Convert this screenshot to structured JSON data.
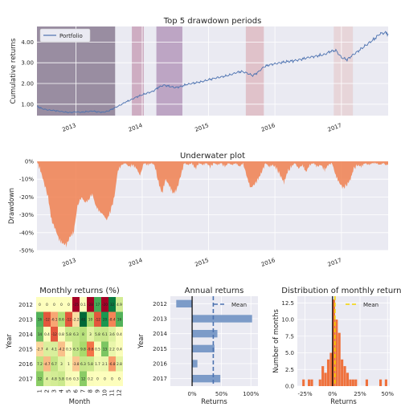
{
  "chart_data": [
    {
      "type": "line",
      "title": "Top 5 drawdown periods",
      "ylabel": "Cumulative returns",
      "xlim": [
        "2012-06-01",
        "2017-09-15"
      ],
      "ylim": [
        0.45,
        4.75
      ],
      "yticks": [
        1.0,
        2.0,
        3.0,
        4.0
      ],
      "ytick_labels": [
        "1.00",
        "2.00",
        "3.00",
        "4.00"
      ],
      "xtick_labels": [
        "2013",
        "2014",
        "2015",
        "2016",
        "2017"
      ],
      "legend": "upper-left",
      "series": [
        {
          "name": "Portfolio",
          "color": "#4c72b0",
          "points": [
            [
              "2012-06-01",
              0.9
            ],
            [
              "2012-07-01",
              0.78
            ],
            [
              "2012-08-01",
              0.72
            ],
            [
              "2012-09-01",
              0.7
            ],
            [
              "2012-10-01",
              0.66
            ],
            [
              "2012-11-01",
              0.62
            ],
            [
              "2012-12-01",
              0.6
            ],
            [
              "2013-01-01",
              0.63
            ],
            [
              "2013-02-01",
              0.61
            ],
            [
              "2013-03-01",
              0.64
            ],
            [
              "2013-04-01",
              0.67
            ],
            [
              "2013-05-01",
              0.63
            ],
            [
              "2013-06-01",
              0.61
            ],
            [
              "2013-07-01",
              0.68
            ],
            [
              "2013-08-01",
              0.82
            ],
            [
              "2013-09-01",
              0.95
            ],
            [
              "2013-10-01",
              1.1
            ],
            [
              "2013-11-01",
              1.22
            ],
            [
              "2013-12-01",
              1.35
            ],
            [
              "2014-01-01",
              1.45
            ],
            [
              "2014-02-01",
              1.55
            ],
            [
              "2014-03-01",
              1.62
            ],
            [
              "2014-04-01",
              1.82
            ],
            [
              "2014-05-01",
              1.92
            ],
            [
              "2014-06-01",
              1.86
            ],
            [
              "2014-07-01",
              1.8
            ],
            [
              "2014-08-01",
              1.85
            ],
            [
              "2014-09-01",
              1.95
            ],
            [
              "2014-10-01",
              2.0
            ],
            [
              "2014-11-01",
              2.05
            ],
            [
              "2014-12-01",
              2.1
            ],
            [
              "2015-01-01",
              2.18
            ],
            [
              "2015-02-01",
              2.25
            ],
            [
              "2015-03-01",
              2.3
            ],
            [
              "2015-04-01",
              2.35
            ],
            [
              "2015-05-01",
              2.42
            ],
            [
              "2015-06-01",
              2.52
            ],
            [
              "2015-07-01",
              2.58
            ],
            [
              "2015-08-01",
              2.5
            ],
            [
              "2015-09-01",
              2.38
            ],
            [
              "2015-10-01",
              2.55
            ],
            [
              "2015-11-01",
              2.8
            ],
            [
              "2015-12-01",
              2.9
            ],
            [
              "2016-01-01",
              2.95
            ],
            [
              "2016-02-01",
              3.0
            ],
            [
              "2016-03-01",
              3.05
            ],
            [
              "2016-04-01",
              3.08
            ],
            [
              "2016-05-01",
              3.12
            ],
            [
              "2016-06-01",
              3.18
            ],
            [
              "2016-07-01",
              3.25
            ],
            [
              "2016-08-01",
              3.3
            ],
            [
              "2016-09-01",
              3.35
            ],
            [
              "2016-10-01",
              3.4
            ],
            [
              "2016-11-01",
              3.55
            ],
            [
              "2016-12-01",
              3.6
            ],
            [
              "2017-01-01",
              3.25
            ],
            [
              "2017-02-01",
              3.15
            ],
            [
              "2017-03-01",
              3.35
            ],
            [
              "2017-04-01",
              3.55
            ],
            [
              "2017-05-01",
              3.75
            ],
            [
              "2017-06-01",
              3.95
            ],
            [
              "2017-07-01",
              4.15
            ],
            [
              "2017-08-01",
              4.4
            ],
            [
              "2017-09-01",
              4.45
            ],
            [
              "2017-09-15",
              4.4
            ]
          ]
        }
      ],
      "drawdown_periods": [
        {
          "start": "2012-06-01",
          "end": "2013-08-05",
          "color": "#48304f",
          "alpha": 0.5
        },
        {
          "start": "2013-11-05",
          "end": "2014-01-10",
          "color": "#9a3c6b",
          "alpha": 0.35
        },
        {
          "start": "2014-03-20",
          "end": "2014-08-10",
          "color": "#7a3f80",
          "alpha": 0.4
        },
        {
          "start": "2015-07-25",
          "end": "2015-11-01",
          "color": "#c54a55",
          "alpha": 0.25
        },
        {
          "start": "2016-11-20",
          "end": "2017-03-05",
          "color": "#e07a6c",
          "alpha": 0.18
        }
      ]
    },
    {
      "type": "area",
      "title": "Underwater plot",
      "ylabel": "Drawdown",
      "xlim": [
        "2012-06-01",
        "2017-09-15"
      ],
      "ylim": [
        -50,
        0
      ],
      "yticks": [
        0,
        -10,
        -20,
        -30,
        -40,
        -50
      ],
      "ytick_labels": [
        "0%",
        "-10%",
        "-20%",
        "-30%",
        "-40%",
        "-50%"
      ],
      "xtick_labels": [
        "2013",
        "2014",
        "2015",
        "2016",
        "2017"
      ],
      "color": "#f08050",
      "series": [
        {
          "points": [
            [
              "2012-06-01",
              0
            ],
            [
              "2012-06-20",
              -5
            ],
            [
              "2012-07-10",
              -12
            ],
            [
              "2012-08-01",
              -20
            ],
            [
              "2012-08-20",
              -33
            ],
            [
              "2012-09-10",
              -38
            ],
            [
              "2012-10-01",
              -44
            ],
            [
              "2012-10-20",
              -46
            ],
            [
              "2012-11-10",
              -47
            ],
            [
              "2012-12-01",
              -42
            ],
            [
              "2012-12-20",
              -40
            ],
            [
              "2013-01-10",
              -25
            ],
            [
              "2013-02-01",
              -20
            ],
            [
              "2013-02-20",
              -23
            ],
            [
              "2013-03-10",
              -22
            ],
            [
              "2013-04-01",
              -18
            ],
            [
              "2013-04-20",
              -25
            ],
            [
              "2013-05-10",
              -28
            ],
            [
              "2013-06-01",
              -30
            ],
            [
              "2013-06-20",
              -33
            ],
            [
              "2013-07-10",
              -28
            ],
            [
              "2013-08-01",
              -20
            ],
            [
              "2013-08-20",
              -5
            ],
            [
              "2013-09-10",
              -2
            ],
            [
              "2013-10-01",
              -1
            ],
            [
              "2013-10-20",
              -3
            ],
            [
              "2013-11-10",
              -2
            ],
            [
              "2013-12-01",
              -4
            ],
            [
              "2013-12-20",
              -8
            ],
            [
              "2014-01-10",
              -1
            ],
            [
              "2014-02-01",
              -2
            ],
            [
              "2014-02-20",
              -1
            ],
            [
              "2014-03-10",
              -2
            ],
            [
              "2014-04-01",
              -12
            ],
            [
              "2014-04-20",
              -18
            ],
            [
              "2014-05-10",
              -10
            ],
            [
              "2014-06-01",
              -14
            ],
            [
              "2014-06-20",
              -18
            ],
            [
              "2014-07-10",
              -16
            ],
            [
              "2014-08-01",
              -8
            ],
            [
              "2014-08-20",
              -1
            ],
            [
              "2014-09-10",
              -2
            ],
            [
              "2014-10-01",
              -1
            ],
            [
              "2014-10-20",
              -4
            ],
            [
              "2014-11-10",
              -1
            ],
            [
              "2014-12-01",
              -2
            ],
            [
              "2014-12-20",
              -1
            ],
            [
              "2015-01-10",
              -3
            ],
            [
              "2015-02-01",
              -1
            ],
            [
              "2015-02-20",
              -2
            ],
            [
              "2015-03-10",
              -1
            ],
            [
              "2015-04-01",
              -3
            ],
            [
              "2015-04-20",
              -1
            ],
            [
              "2015-05-10",
              -2
            ],
            [
              "2015-06-01",
              -1
            ],
            [
              "2015-06-20",
              -3
            ],
            [
              "2015-07-10",
              -1
            ],
            [
              "2015-08-01",
              -9
            ],
            [
              "2015-08-20",
              -15
            ],
            [
              "2015-09-10",
              -13
            ],
            [
              "2015-10-01",
              -10
            ],
            [
              "2015-10-20",
              -6
            ],
            [
              "2015-11-10",
              -1
            ],
            [
              "2015-12-01",
              -3
            ],
            [
              "2015-12-20",
              -2
            ],
            [
              "2016-01-10",
              -4
            ],
            [
              "2016-02-01",
              -8
            ],
            [
              "2016-02-20",
              -12
            ],
            [
              "2016-03-10",
              -6
            ],
            [
              "2016-04-01",
              -3
            ],
            [
              "2016-04-20",
              -1
            ],
            [
              "2016-05-10",
              -4
            ],
            [
              "2016-06-01",
              -2
            ],
            [
              "2016-06-20",
              -6
            ],
            [
              "2016-07-10",
              -2
            ],
            [
              "2016-08-01",
              -1
            ],
            [
              "2016-08-20",
              -3
            ],
            [
              "2016-09-10",
              -2
            ],
            [
              "2016-10-01",
              -5
            ],
            [
              "2016-10-20",
              -2
            ],
            [
              "2016-11-10",
              -1
            ],
            [
              "2016-12-01",
              -8
            ],
            [
              "2016-12-20",
              -12
            ],
            [
              "2017-01-10",
              -15
            ],
            [
              "2017-02-01",
              -13
            ],
            [
              "2017-02-20",
              -10
            ],
            [
              "2017-03-10",
              -4
            ],
            [
              "2017-04-01",
              -2
            ],
            [
              "2017-04-20",
              -3
            ],
            [
              "2017-05-10",
              -1
            ],
            [
              "2017-06-01",
              -2
            ],
            [
              "2017-06-20",
              -1
            ],
            [
              "2017-07-10",
              -1
            ],
            [
              "2017-08-01",
              -2
            ],
            [
              "2017-08-20",
              -1
            ],
            [
              "2017-09-15",
              -2
            ]
          ]
        }
      ]
    },
    {
      "type": "heatmap",
      "title": "Monthly returns (%)",
      "xlabel": "Month",
      "ylabel": "Year",
      "years": [
        "2012",
        "2013",
        "2014",
        "2015",
        "2016",
        "2017"
      ],
      "months": [
        "1",
        "2",
        "3",
        "4",
        "5",
        "6",
        "7",
        "8",
        "9",
        "10",
        "11",
        "12"
      ],
      "values": [
        [
          0,
          0,
          0,
          0,
          0,
          -25,
          0.1,
          -28,
          17,
          -20,
          32,
          4.9
        ],
        [
          16,
          -12,
          -6.1,
          8.6,
          -12,
          -2.2,
          48,
          10,
          -12,
          20,
          -8.4,
          16
        ],
        [
          14,
          0.4,
          -12,
          0.8,
          5.8,
          6.3,
          8,
          3,
          5.8,
          6.1,
          3.6,
          0.4
        ],
        [
          -2.7,
          4,
          4.1,
          -4.2,
          0.3,
          6.3,
          9.8,
          -9.6,
          0.5,
          13,
          2.2,
          0.4
        ],
        [
          7.2,
          -4.7,
          6.7,
          3,
          1,
          -3.8,
          6.3,
          5.8,
          1.7,
          2.1,
          -6.8,
          2.8
        ],
        [
          12,
          4,
          4.8,
          5.8,
          0.6,
          0.3,
          12,
          0.2,
          0,
          0,
          0,
          0
        ]
      ],
      "labels": [
        [
          "0",
          "0",
          "0",
          "0",
          "0",
          "-25",
          "0.1",
          "-28",
          "17",
          "-20",
          "32",
          "4.9"
        ],
        [
          "16",
          "-12",
          "-6.1",
          "8.6",
          "-12",
          "-2.2",
          "48",
          "10",
          "-12",
          "20",
          "-8.4",
          "16"
        ],
        [
          "14",
          "0.4",
          "-12",
          "0.8",
          "5.8",
          "6.3",
          "8",
          "3",
          "5.8",
          "6.1",
          "3.6",
          "0.4"
        ],
        [
          "-2.7",
          "4",
          "4.1",
          "-4.2",
          "0.3",
          "6.3",
          "9.8",
          "-9.6",
          "0.5",
          "13",
          "2.2",
          "0.4"
        ],
        [
          "7.2",
          "-4.7",
          "6.7",
          "3",
          "1",
          "-3.8",
          "6.3",
          "5.8",
          "1.7",
          "2.1",
          "-6.8",
          "2.8"
        ],
        [
          "12",
          "4",
          "4.8",
          "5.8",
          "0.6",
          "0.3",
          "12",
          "0.2",
          "0",
          "0",
          "0",
          "0"
        ]
      ],
      "colormap": "RdYlGn"
    },
    {
      "type": "bar",
      "title": "Annual returns",
      "xlabel": "Returns",
      "ylabel": "Year",
      "orientation": "horizontal",
      "categories": [
        "2012",
        "2013",
        "2014",
        "2015",
        "2016",
        "2017"
      ],
      "values": [
        -27,
        102,
        43,
        38,
        9,
        48
      ],
      "mean": 36,
      "xlim": [
        -37,
        112
      ],
      "xticks": [
        0,
        50,
        100
      ],
      "xtick_labels": [
        "0%",
        "50%",
        "100%"
      ],
      "color": "#7c9bc8",
      "legend": "upper-right",
      "legend_label": "Mean"
    },
    {
      "type": "bar",
      "title": "Distribution of monthly returns",
      "xlabel": "Returns",
      "ylabel": "Number of months",
      "bins_start": [
        -30,
        -27.5,
        -25,
        -22.5,
        -20,
        -17.5,
        -15,
        -12.5,
        -10,
        -7.5,
        -5,
        -2.5,
        0,
        2.5,
        5,
        7.5,
        10,
        12.5,
        15,
        17.5,
        20,
        22.5,
        25,
        27.5,
        30,
        32.5,
        35,
        37.5,
        40,
        42.5,
        45,
        47.5
      ],
      "bin_width": 2.5,
      "counts": [
        0,
        1,
        0,
        1,
        1,
        0,
        0,
        1,
        3,
        2,
        4,
        5,
        13,
        10,
        8,
        4,
        3,
        2,
        1,
        1,
        1,
        0,
        0,
        0,
        1,
        0,
        0,
        0,
        0,
        1,
        0,
        1
      ],
      "mean": 2.2,
      "xlim": [
        -32,
        52
      ],
      "ylim": [
        0,
        13.5
      ],
      "xticks": [
        -25,
        0,
        25,
        50
      ],
      "xtick_labels": [
        "-25%",
        "0%",
        "25%",
        "50%"
      ],
      "yticks": [
        0,
        2.5,
        5,
        7.5,
        10,
        12.5
      ],
      "ytick_labels": [
        "0.0",
        "2.5",
        "5.0",
        "7.5",
        "10.0",
        "12.5"
      ],
      "color": "#f05c1c",
      "mean_color": "#f5d300",
      "legend": "upper-right",
      "legend_label": "Mean"
    }
  ]
}
